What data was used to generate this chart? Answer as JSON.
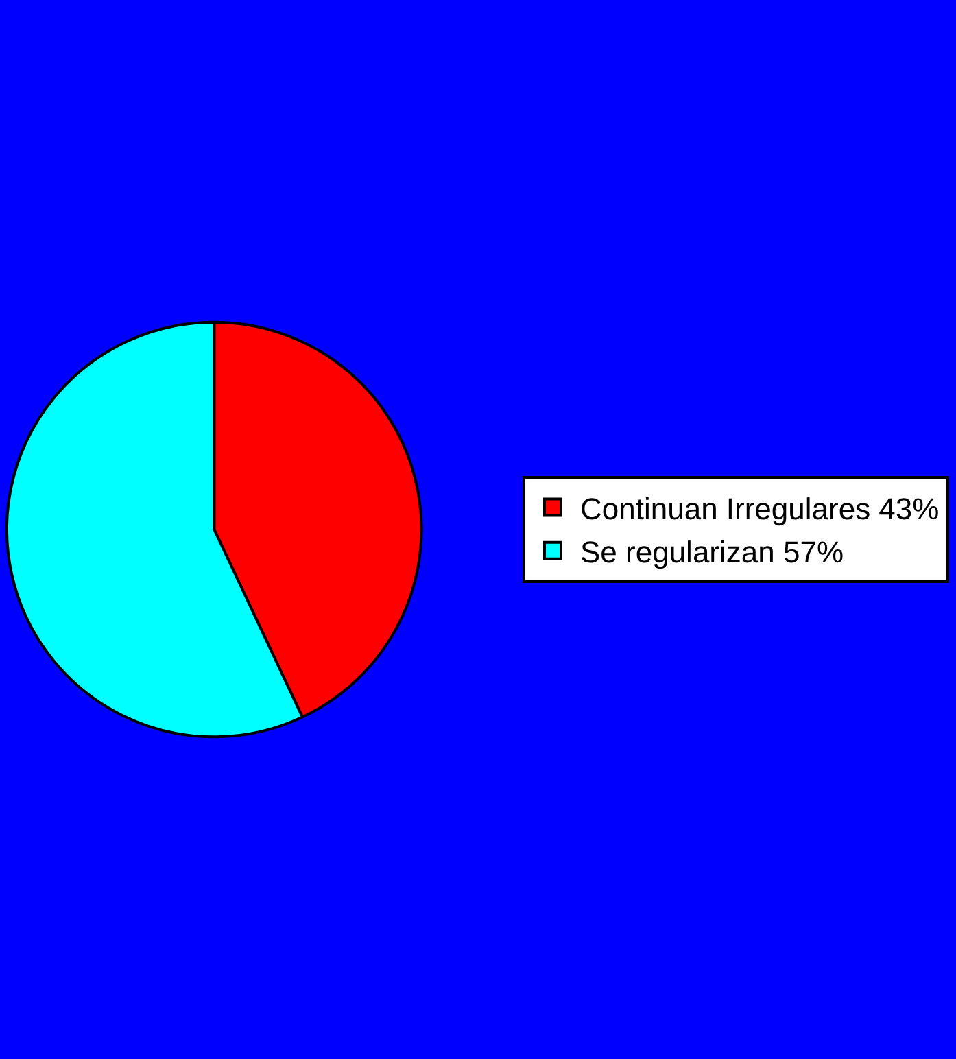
{
  "chart_data": {
    "type": "pie",
    "categories": [
      "Continuan Irregulares 43%",
      "Se regularizan 57%"
    ],
    "values": [
      43,
      57
    ],
    "colors": [
      "#ff0000",
      "#00ffff"
    ],
    "legend": "right"
  }
}
